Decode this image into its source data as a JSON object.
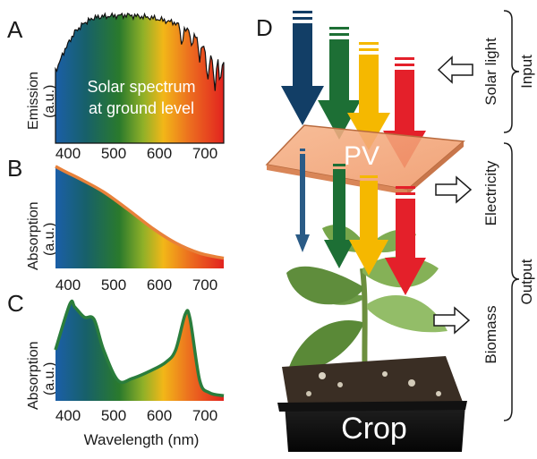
{
  "panels": {
    "A": {
      "letter": "A",
      "ylabel": "Emission",
      "yunit": "(a.u.)",
      "inner_text_line1": "Solar spectrum",
      "inner_text_line2": "at ground level",
      "xticks": [
        "400",
        "500",
        "600",
        "700"
      ]
    },
    "B": {
      "letter": "B",
      "ylabel": "Absorption",
      "yunit": "(a.u.)",
      "xticks": [
        "400",
        "500",
        "600",
        "700"
      ]
    },
    "C": {
      "letter": "C",
      "ylabel": "Absorption",
      "yunit": "(a.u.)",
      "xticks": [
        "400",
        "500",
        "600",
        "700"
      ],
      "xlabel": "Wavelength (nm)"
    }
  },
  "diagram": {
    "letter": "D",
    "pv_label": "PV",
    "crop_label": "Crop",
    "solar_light": "Solar light",
    "electricity": "Electricity",
    "biomass": "Biomass",
    "input": "Input",
    "output": "Output"
  },
  "colors": {
    "blue": "#123e66",
    "green": "#1d6f35",
    "yellow": "#f5b800",
    "red": "#e4202a",
    "pv_panel": "#f4a97c",
    "curve_B": "#e8813a",
    "curve_C": "#2a7d3c"
  },
  "chart_data": [
    {
      "type": "area",
      "title": "",
      "ylabel": "Emission (a.u.)",
      "xlim": [
        400,
        750
      ],
      "x": [
        400,
        420,
        440,
        460,
        480,
        500,
        550,
        600,
        650,
        680,
        700,
        720,
        750
      ],
      "values": [
        0.55,
        0.72,
        0.85,
        0.92,
        0.96,
        0.97,
        0.98,
        0.96,
        0.92,
        0.85,
        0.78,
        0.65,
        0.62
      ]
    },
    {
      "type": "area",
      "title": "",
      "ylabel": "Absorption (a.u.)",
      "xlim": [
        400,
        750
      ],
      "x": [
        400,
        420,
        450,
        500,
        550,
        600,
        650,
        700,
        750
      ],
      "values": [
        1.0,
        0.95,
        0.88,
        0.75,
        0.58,
        0.4,
        0.25,
        0.15,
        0.1
      ]
    },
    {
      "type": "area",
      "title": "",
      "ylabel": "Absorption (a.u.)",
      "xlabel": "Wavelength (nm)",
      "xlim": [
        400,
        750
      ],
      "x": [
        400,
        430,
        440,
        460,
        480,
        500,
        530,
        560,
        600,
        630,
        650,
        670,
        680,
        700,
        720,
        750
      ],
      "values": [
        0.5,
        0.95,
        0.92,
        0.82,
        0.8,
        0.5,
        0.2,
        0.22,
        0.3,
        0.38,
        0.5,
        0.85,
        0.8,
        0.2,
        0.08,
        0.05
      ]
    }
  ]
}
